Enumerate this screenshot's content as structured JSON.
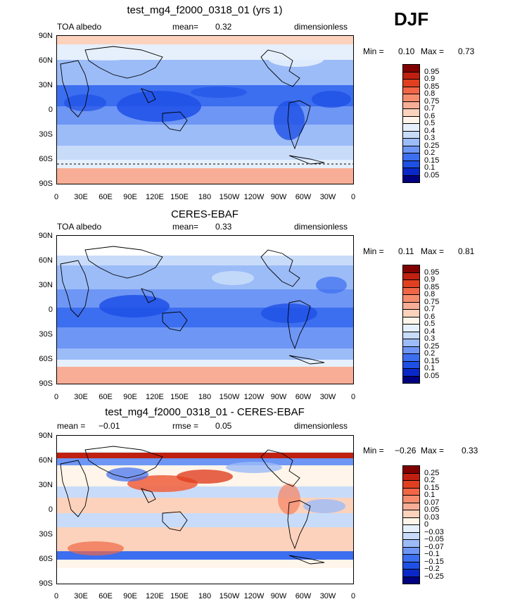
{
  "season": "DJF",
  "latitude_labels": [
    "90N",
    "60N",
    "30N",
    "0",
    "30S",
    "60S",
    "90S"
  ],
  "longitude_labels": [
    "0",
    "30E",
    "60E",
    "90E",
    "120E",
    "150E",
    "180",
    "150W",
    "120W",
    "90W",
    "60W",
    "30W",
    "0"
  ],
  "colors": {
    "albedo": [
      "#000080",
      "#0a28c8",
      "#1e50e6",
      "#3c6ef0",
      "#6e96f5",
      "#9cbcf8",
      "#c8dcfa",
      "#e6f0fc",
      "#fff5ea",
      "#fcd2bc",
      "#f8ae96",
      "#f58c6e",
      "#f06646",
      "#e04020",
      "#c02010",
      "#800000"
    ],
    "diff": [
      "#000080",
      "#0a28c8",
      "#1e50e6",
      "#3c6ef0",
      "#6e96f5",
      "#9cbcf8",
      "#c8dcfa",
      "#e6f0fc",
      "#fff5ea",
      "#fcd2bc",
      "#f8ae96",
      "#f58c6e",
      "#f06646",
      "#e04020",
      "#c02010",
      "#800000"
    ]
  },
  "panels": [
    {
      "title": "test_mg4_f2000_0318_01 (yrs 1)",
      "left_label": "TOA albedo",
      "mean_label": "mean=",
      "mean_value": "0.32",
      "units": "dimensionless",
      "min_label": "Min =",
      "min_value": "0.10",
      "max_label": "Max =",
      "max_value": "0.73",
      "colorbar_levels": [
        "0.95",
        "0.9",
        "0.85",
        "0.8",
        "0.75",
        "0.7",
        "0.6",
        "0.5",
        "0.4",
        "0.3",
        "0.25",
        "0.2",
        "0.15",
        "0.1",
        "0.05"
      ]
    },
    {
      "title": "CERES-EBAF",
      "left_label": "TOA albedo",
      "mean_label": "mean=",
      "mean_value": "0.33",
      "units": "dimensionless",
      "min_label": "Min =",
      "min_value": "0.11",
      "max_label": "Max =",
      "max_value": "0.81",
      "colorbar_levels": [
        "0.95",
        "0.9",
        "0.85",
        "0.8",
        "0.75",
        "0.7",
        "0.6",
        "0.5",
        "0.4",
        "0.3",
        "0.25",
        "0.2",
        "0.15",
        "0.1",
        "0.05"
      ]
    },
    {
      "title": "test_mg4_f2000_0318_01 - CERES-EBAF",
      "left_label": "mean =",
      "left_value": "−0.01",
      "mean_label": "rmse =",
      "mean_value": "0.05",
      "units": "dimensionless",
      "min_label": "Min =",
      "min_value": "−0.26",
      "max_label": "Max =",
      "max_value": "0.33",
      "colorbar_levels": [
        "0.25",
        "0.2",
        "0.15",
        "0.1",
        "0.07",
        "0.05",
        "0.03",
        "0",
        "−0.03",
        "−0.05",
        "−0.07",
        "−0.1",
        "−0.15",
        "−0.2",
        "−0.25"
      ]
    }
  ]
}
